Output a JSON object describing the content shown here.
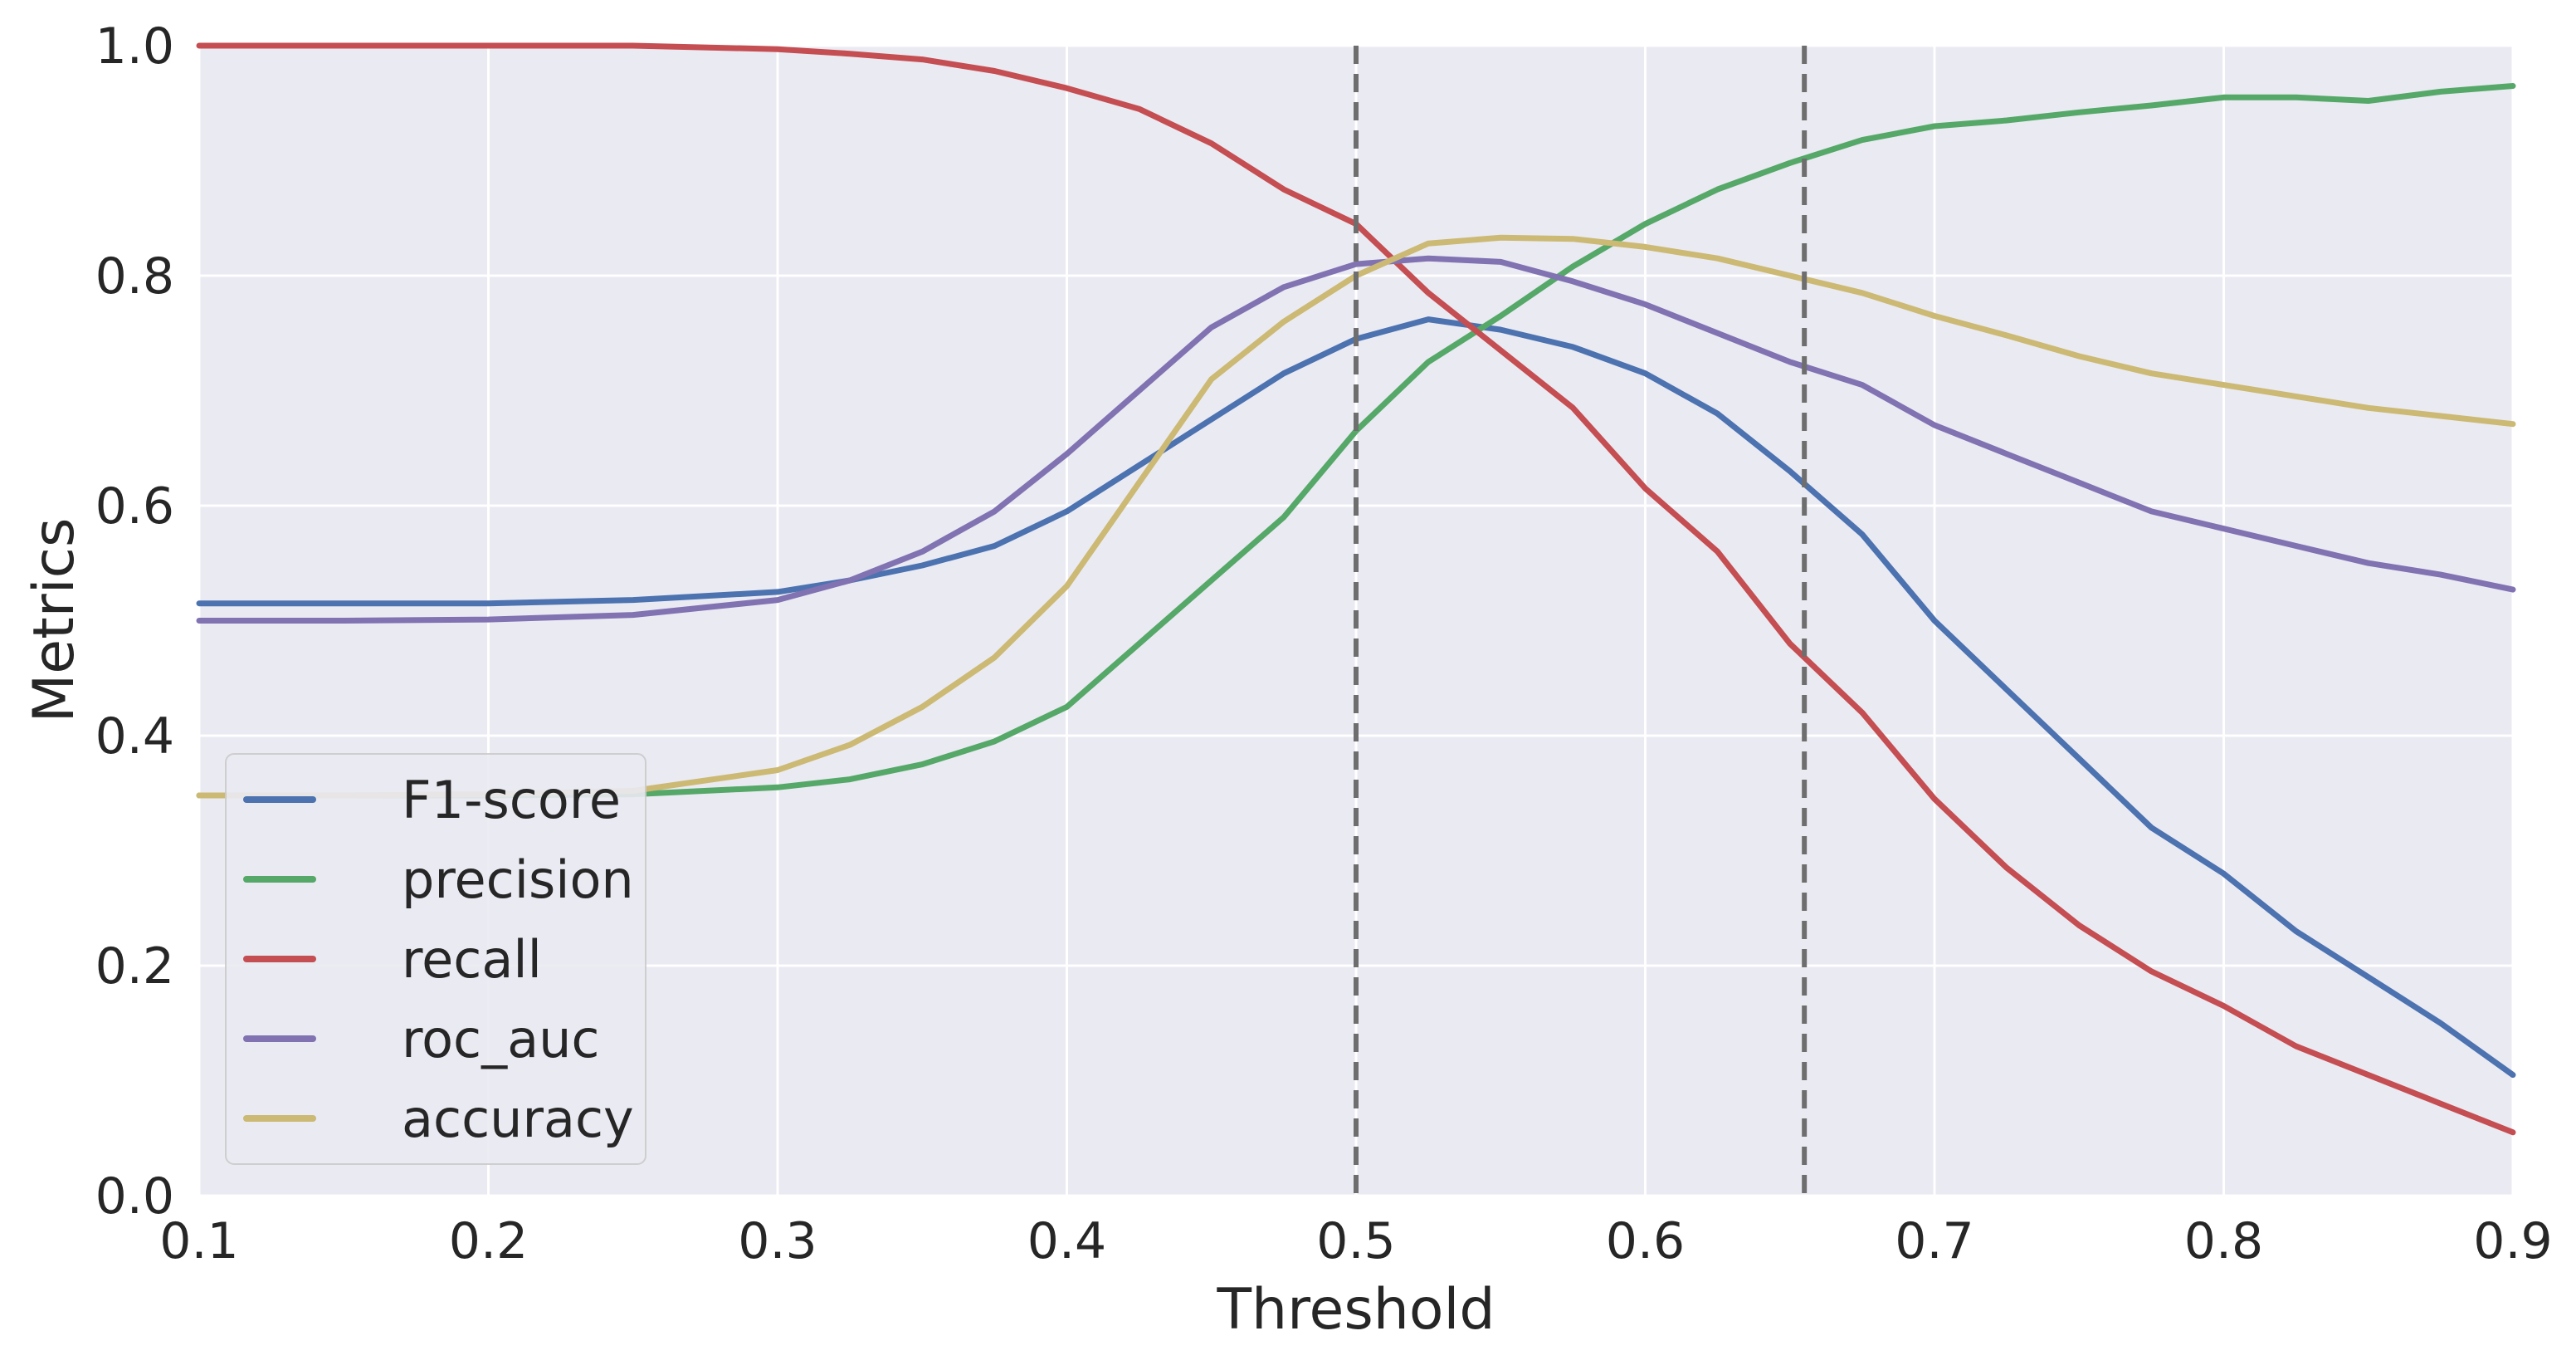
{
  "chart_data": {
    "type": "line",
    "title": "",
    "xlabel": "Threshold",
    "ylabel": "Metrics",
    "xlim": [
      0.1,
      0.9
    ],
    "ylim": [
      0.0,
      1.0
    ],
    "xticks": [
      "0.1",
      "0.2",
      "0.3",
      "0.4",
      "0.5",
      "0.6",
      "0.7",
      "0.8",
      "0.9"
    ],
    "yticks": [
      "0.0",
      "0.2",
      "0.4",
      "0.6",
      "0.8",
      "1.0"
    ],
    "grid": true,
    "legend_position": "lower-left",
    "vlines": [
      0.5,
      0.655
    ],
    "x": [
      0.1,
      0.15,
      0.2,
      0.25,
      0.3,
      0.325,
      0.35,
      0.375,
      0.4,
      0.425,
      0.45,
      0.475,
      0.5,
      0.525,
      0.55,
      0.575,
      0.6,
      0.625,
      0.65,
      0.675,
      0.7,
      0.725,
      0.75,
      0.775,
      0.8,
      0.825,
      0.85,
      0.875,
      0.9
    ],
    "series": [
      {
        "name": "F1-score",
        "color": "#4c72b0",
        "values": [
          0.515,
          0.515,
          0.515,
          0.518,
          0.525,
          0.535,
          0.548,
          0.565,
          0.595,
          0.635,
          0.675,
          0.715,
          0.745,
          0.762,
          0.753,
          0.738,
          0.715,
          0.68,
          0.63,
          0.575,
          0.5,
          0.44,
          0.38,
          0.32,
          0.28,
          0.23,
          0.19,
          0.15,
          0.105
        ]
      },
      {
        "name": "precision",
        "color": "#55a868",
        "values": [
          0.348,
          0.348,
          0.348,
          0.349,
          0.355,
          0.362,
          0.375,
          0.395,
          0.425,
          0.48,
          0.535,
          0.59,
          0.665,
          0.725,
          0.765,
          0.808,
          0.845,
          0.875,
          0.898,
          0.918,
          0.93,
          0.935,
          0.942,
          0.948,
          0.955,
          0.955,
          0.952,
          0.96,
          0.965
        ]
      },
      {
        "name": "recall",
        "color": "#c44e52",
        "values": [
          1.0,
          1.0,
          1.0,
          1.0,
          0.997,
          0.993,
          0.988,
          0.978,
          0.963,
          0.945,
          0.915,
          0.875,
          0.845,
          0.785,
          0.735,
          0.685,
          0.615,
          0.56,
          0.48,
          0.42,
          0.345,
          0.285,
          0.235,
          0.195,
          0.165,
          0.13,
          0.105,
          0.08,
          0.055
        ]
      },
      {
        "name": "roc_auc",
        "color": "#8172b2",
        "values": [
          0.5,
          0.5,
          0.501,
          0.505,
          0.518,
          0.535,
          0.56,
          0.595,
          0.645,
          0.7,
          0.755,
          0.79,
          0.81,
          0.815,
          0.812,
          0.795,
          0.775,
          0.75,
          0.725,
          0.705,
          0.67,
          0.645,
          0.62,
          0.595,
          0.58,
          0.565,
          0.55,
          0.54,
          0.527
        ]
      },
      {
        "name": "accuracy",
        "color": "#ccb974",
        "values": [
          0.348,
          0.348,
          0.349,
          0.352,
          0.37,
          0.392,
          0.425,
          0.468,
          0.53,
          0.62,
          0.71,
          0.76,
          0.8,
          0.828,
          0.833,
          0.832,
          0.825,
          0.815,
          0.8,
          0.785,
          0.765,
          0.748,
          0.73,
          0.715,
          0.705,
          0.695,
          0.685,
          0.678,
          0.671
        ]
      }
    ]
  }
}
